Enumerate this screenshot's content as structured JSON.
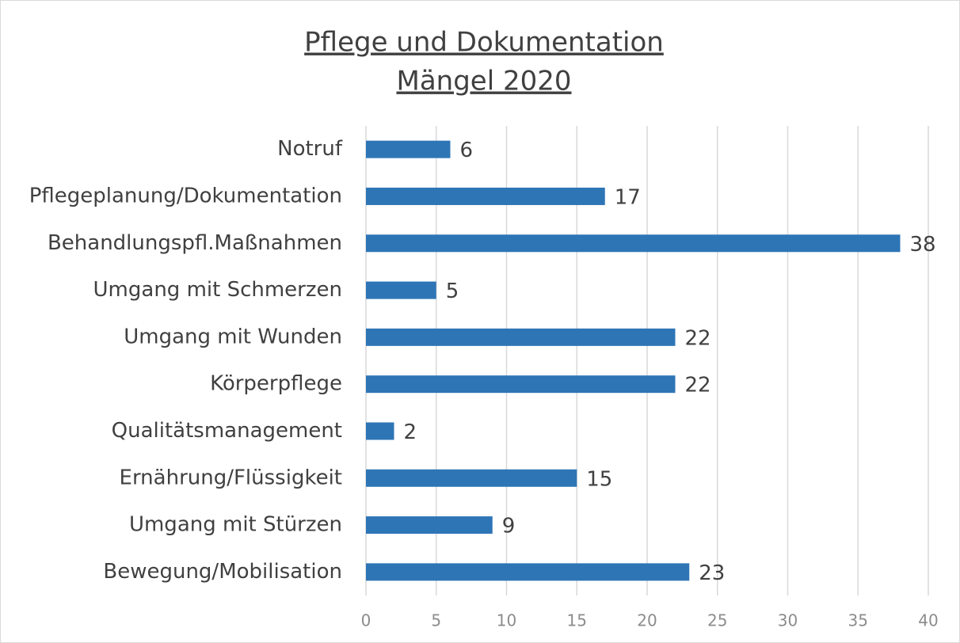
{
  "chart_data": {
    "type": "bar",
    "orientation": "horizontal",
    "title": "Pflege und Dokumentation",
    "subtitle": "Mängel 2020",
    "categories": [
      "Notruf",
      "Pflegeplanung/Dokumentation",
      "Behandlungspfl.Maßnahmen",
      "Umgang mit Schmerzen",
      "Umgang mit Wunden",
      "Körperpflege",
      "Qualitätsmanagement",
      "Ernährung/Flüssigkeit",
      "Umgang mit Stürzen",
      "Bewegung/Mobilisation"
    ],
    "values": [
      6,
      17,
      38,
      5,
      22,
      22,
      2,
      15,
      9,
      23
    ],
    "color": "#2e75b6",
    "xlim": [
      0,
      40
    ],
    "xticks": [
      0,
      5,
      10,
      15,
      20,
      25,
      30,
      35,
      40
    ],
    "grid": true
  }
}
